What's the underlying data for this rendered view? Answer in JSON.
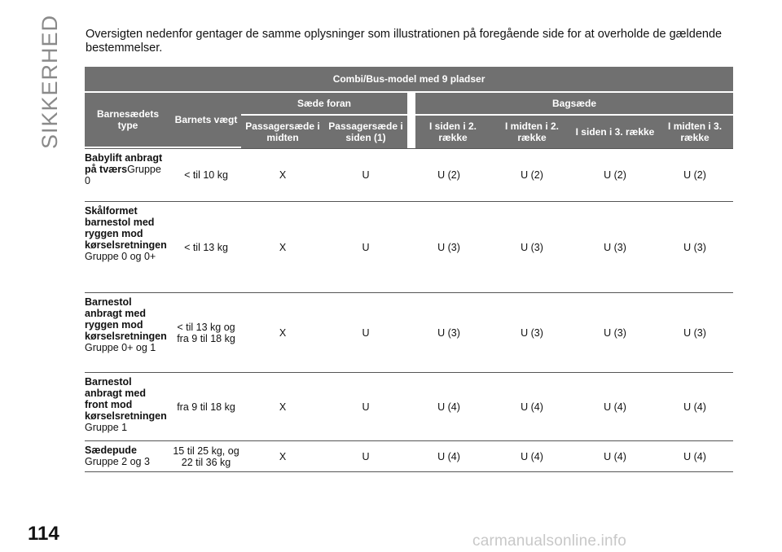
{
  "side_title": "SIKKERHED",
  "page_number": "114",
  "intro_text": "Oversigten nedenfor gentager de samme oplysninger som illustrationen på foregående side for at overholde de gældende bestemmelser.",
  "table": {
    "title": "Combi/Bus-model med 9 pladser",
    "col_type": "Barnesædets type",
    "col_weight": "Barnets vægt",
    "group_front": "Sæde foran",
    "group_rear": "Bagsæde",
    "sub": [
      "Passagersæde i midten",
      "Passagersæde i siden (1)",
      "I siden i 2. række",
      "I midten i 2. række",
      "I siden i 3. række",
      "I midten i 3. række"
    ],
    "rows": [
      {
        "type_bold": "Babylift anbragt på tværs",
        "type_group": "Gruppe 0",
        "weight": "< til 10 kg",
        "values": [
          "X",
          "U",
          "U (2)",
          "U (2)",
          "U (2)",
          "U (2)"
        ]
      },
      {
        "type_bold": "Skålformet barnestol med ryggen mod kørselsretningen",
        "type_group": "Gruppe 0 og 0+",
        "weight": "< til 13 kg",
        "values": [
          "X",
          "U",
          "U (3)",
          "U (3)",
          "U (3)",
          "U (3)"
        ]
      },
      {
        "type_bold": "Barnestol anbragt med ryggen mod kørselsretningen",
        "type_group": "Gruppe 0+ og 1",
        "weight": "< til 13 kg og fra 9 til 18 kg",
        "values": [
          "X",
          "U",
          "U (3)",
          "U (3)",
          "U (3)",
          "U (3)"
        ]
      },
      {
        "type_bold": "Barnestol anbragt med front mod kørselsretningen",
        "type_group": "Gruppe 1",
        "weight": "fra 9 til 18 kg",
        "values": [
          "X",
          "U",
          "U (4)",
          "U (4)",
          "U (4)",
          "U (4)"
        ]
      },
      {
        "type_bold": "Sædepude",
        "type_group": "Gruppe 2 og 3",
        "weight": "15 til 25 kg, og 22 til 36 kg",
        "values": [
          "X",
          "U",
          "U (4)",
          "U (4)",
          "U (4)",
          "U (4)"
        ]
      }
    ]
  },
  "watermark": "carmanualsonline.info"
}
